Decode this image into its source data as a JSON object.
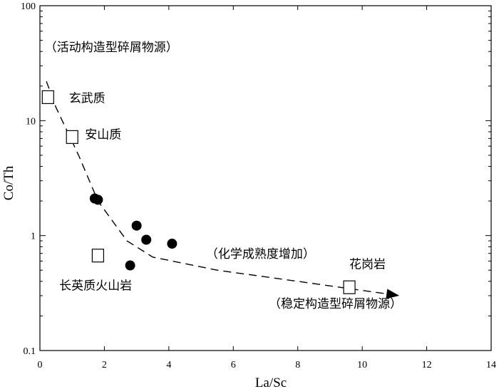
{
  "chart_data": {
    "type": "scatter",
    "xlabel": "La/Sc",
    "ylabel": "Co/Th",
    "xlim": [
      0,
      14
    ],
    "ylim": [
      0.1,
      100
    ],
    "yscale": "log",
    "x_ticks": [
      0,
      2,
      4,
      6,
      8,
      10,
      12,
      14
    ],
    "y_ticks": [
      0.1,
      1,
      10,
      100
    ],
    "x_tick_labels": [
      "0",
      "2",
      "4",
      "6",
      "8",
      "10",
      "12",
      "14"
    ],
    "y_tick_labels": [
      "0.1",
      "1",
      "10",
      "100"
    ],
    "grid": false,
    "series": [
      {
        "marker": "filled-circle",
        "points": [
          {
            "x": 1.7,
            "y": 2.1
          },
          {
            "x": 1.8,
            "y": 2.05
          },
          {
            "x": 3.0,
            "y": 1.22
          },
          {
            "x": 3.3,
            "y": 0.92
          },
          {
            "x": 4.1,
            "y": 0.85
          },
          {
            "x": 2.8,
            "y": 0.55
          }
        ]
      },
      {
        "marker": "open-square",
        "points": [
          {
            "x": 0.25,
            "y": 16.0
          },
          {
            "x": 1.0,
            "y": 7.2
          },
          {
            "x": 1.8,
            "y": 0.67
          },
          {
            "x": 9.6,
            "y": 0.355
          }
        ]
      }
    ],
    "trend_line": {
      "style": "dashed",
      "arrow_end": true,
      "points": [
        {
          "x": 0.2,
          "y": 22
        },
        {
          "x": 0.5,
          "y": 13
        },
        {
          "x": 1.2,
          "y": 5
        },
        {
          "x": 1.8,
          "y": 2.0
        },
        {
          "x": 2.7,
          "y": 0.9
        },
        {
          "x": 3.5,
          "y": 0.65
        },
        {
          "x": 5.5,
          "y": 0.5
        },
        {
          "x": 8.0,
          "y": 0.4
        },
        {
          "x": 10.8,
          "y": 0.31
        }
      ]
    },
    "annotations": [
      {
        "text": "（活动构造型碎屑物源）",
        "x": 0.15,
        "y": 40
      },
      {
        "text": "玄武质",
        "x": 0.9,
        "y": 14.5
      },
      {
        "text": "安山质",
        "x": 1.4,
        "y": 7.0
      },
      {
        "text": "长英质火山岩",
        "x": 0.6,
        "y": 0.34
      },
      {
        "text": "（化学成熟度增加）",
        "x": 5.15,
        "y": 0.64
      },
      {
        "text": "花岗岩",
        "x": 9.6,
        "y": 0.52
      },
      {
        "text": "（稳定构造型碎屑物源）",
        "x": 7.1,
        "y": 0.235
      }
    ]
  }
}
